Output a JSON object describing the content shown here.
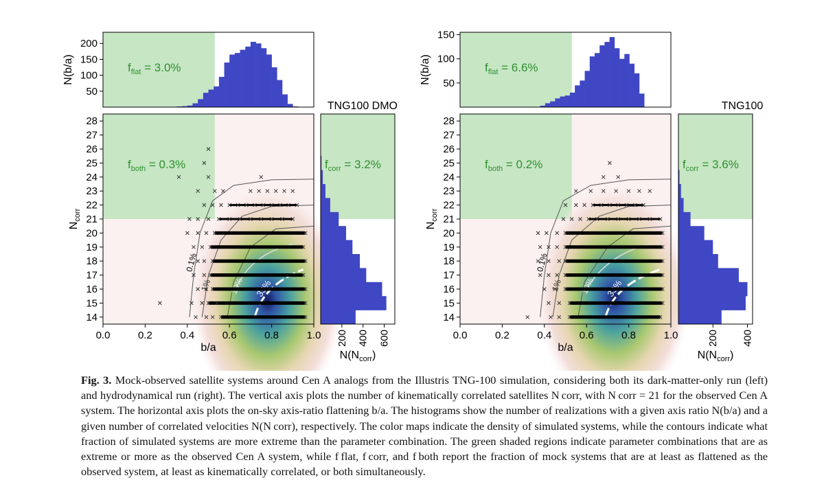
{
  "figure": {
    "caption_label": "Fig. 3.",
    "caption_text": "Mock-observed satellite systems around Cen A analogs from the Illustris TNG-100 simulation, considering both its dark-matter-only run (left) and hydrodynamical run (right). The vertical axis plots the number of kinematically correlated satellites N corr, with N corr = 21 for the observed Cen A system. The horizontal axis plots the on-sky axis-ratio flattening b/a. The histograms show the number of realizations with a given axis ratio N(b/a) and a given number of correlated velocities N(N corr), respectively. The color maps indicate the density of simulated systems, while the contours indicate what fraction of simulated systems are more extreme than the parameter combination. The green shaded regions indicate parameter combinations that are as extreme or more as the observed Cen A system, while f flat, f corr, and f both report the fraction of mock systems that are at least as flattened as the observed system, at least as kinematically correlated, or both simultaneously."
  },
  "colors": {
    "hist": "#3f47c4",
    "shade": "#c6e6c4",
    "annot": "#2f8f2f",
    "contour": "#555555"
  },
  "chart_data": [
    {
      "type": "histogram",
      "panel": "left-top",
      "ylabel": "N(b/a)",
      "yticks": [
        50,
        100,
        150,
        200
      ],
      "ylim": [
        0,
        235
      ],
      "xlim": [
        0,
        1
      ],
      "annotation_pre": "f",
      "annotation_sub": "flat",
      "annotation_post": " = 3.0%",
      "bins_x0": 0.35,
      "bin_width": 0.025,
      "values": [
        2,
        3,
        5,
        12,
        25,
        45,
        55,
        65,
        95,
        140,
        165,
        170,
        180,
        190,
        205,
        200,
        185,
        165,
        125,
        85,
        40,
        10,
        2
      ],
      "shade_xmax": 0.53
    },
    {
      "type": "scatter",
      "panel": "left-main",
      "xlabel": "b/a",
      "ylabel": "N",
      "ylabel_sub": "corr",
      "xlim": [
        0,
        1
      ],
      "ylim": [
        13.5,
        28.5
      ],
      "xticks": [
        "0.0",
        "0.2",
        "0.4",
        "0.6",
        "0.8",
        "1.0"
      ],
      "yticks": [
        14,
        15,
        16,
        17,
        18,
        19,
        20,
        21,
        22,
        23,
        24,
        25,
        26,
        27,
        28
      ],
      "annotation_pre": "f",
      "annotation_sub": "both",
      "annotation_post": " = 0.3%",
      "shade": {
        "xmax": 0.53,
        "ymin": 21
      },
      "density_center": [
        0.78,
        15.2
      ],
      "contour_labels": [
        "0.1%",
        "1%",
        "10%",
        "33%"
      ],
      "rows": [
        {
          "y": 14,
          "x": [
            0.44,
            0.49,
            0.52,
            0.56,
            0.96
          ]
        },
        {
          "y": 15,
          "x": [
            0.27,
            0.42,
            0.47,
            0.5,
            0.54,
            0.96
          ]
        },
        {
          "y": 16,
          "x": [
            0.45,
            0.49,
            0.52,
            0.96
          ]
        },
        {
          "y": 17,
          "x": [
            0.43,
            0.48,
            0.51,
            0.95
          ]
        },
        {
          "y": 18,
          "x": [
            0.45,
            0.48,
            0.52,
            0.96
          ]
        },
        {
          "y": 19,
          "x": [
            0.43,
            0.47,
            0.51,
            0.95
          ]
        },
        {
          "y": 20,
          "x": [
            0.4,
            0.45,
            0.49,
            0.53,
            0.96
          ]
        },
        {
          "y": 21,
          "x": [
            0.41,
            0.45,
            0.5,
            0.55,
            0.6,
            0.65,
            0.7,
            0.75,
            0.8,
            0.85,
            0.9
          ]
        },
        {
          "y": 22,
          "x": [
            0.48,
            0.52,
            0.56,
            0.6,
            0.64,
            0.68,
            0.72,
            0.76,
            0.8,
            0.84,
            0.88,
            0.92
          ]
        },
        {
          "y": 23,
          "x": [
            0.45,
            0.53,
            0.57,
            0.7,
            0.74,
            0.78,
            0.82,
            0.86,
            0.9
          ]
        },
        {
          "y": 24,
          "x": [
            0.36,
            0.5,
            0.75
          ]
        },
        {
          "y": 25,
          "x": [
            0.48
          ]
        },
        {
          "y": 26,
          "x": [
            0.5
          ]
        }
      ]
    },
    {
      "type": "histogram-horizontal",
      "panel": "left-right",
      "title": "TNG100 DMO",
      "xlabel": "N(N",
      "xlabel_sub": "corr",
      "xlabel_post": ")",
      "xticks": [
        200,
        400,
        600
      ],
      "xlim": [
        0,
        700
      ],
      "annotation_pre": "f",
      "annotation_sub": "corr",
      "annotation_post": " = 3.2%",
      "ylim": [
        13.5,
        28.5
      ],
      "shade_ymin": 21,
      "bins": [
        14,
        15,
        16,
        17,
        18,
        19,
        20,
        21,
        22,
        23,
        24,
        25
      ],
      "values": [
        330,
        620,
        580,
        430,
        370,
        300,
        240,
        170,
        90,
        45,
        20,
        8
      ]
    },
    {
      "type": "histogram",
      "panel": "right-top",
      "ylabel": "N(b/a)",
      "yticks": [
        50,
        100,
        150
      ],
      "ylim": [
        0,
        155
      ],
      "xlim": [
        0,
        1
      ],
      "annotation_pre": "f",
      "annotation_sub": "flat",
      "annotation_post": " = 6.6%",
      "bins_x0": 0.38,
      "bin_width": 0.0235,
      "values": [
        3,
        8,
        12,
        18,
        22,
        24,
        30,
        45,
        55,
        75,
        105,
        112,
        128,
        135,
        145,
        122,
        100,
        110,
        90,
        70,
        28
      ],
      "shade_xmax": 0.53
    },
    {
      "type": "scatter",
      "panel": "right-main",
      "xlabel": "b/a",
      "ylabel": "N",
      "ylabel_sub": "corr",
      "xlim": [
        0,
        1
      ],
      "ylim": [
        13.5,
        28.5
      ],
      "xticks": [
        "0.0",
        "0.2",
        "0.4",
        "0.6",
        "0.8",
        "1.0"
      ],
      "yticks": [
        14,
        15,
        16,
        17,
        18,
        19,
        20,
        21,
        22,
        23,
        24,
        25,
        26,
        27,
        28
      ],
      "annotation_pre": "f",
      "annotation_sub": "both",
      "annotation_post": " = 0.2%",
      "shade": {
        "xmax": 0.53,
        "ymin": 21
      },
      "density_center": [
        0.73,
        15.4
      ],
      "contour_labels": [
        "0.1%",
        "1%",
        "10%",
        "33%"
      ],
      "rows": [
        {
          "y": 14,
          "x": [
            0.32,
            0.43,
            0.47,
            0.52,
            0.95
          ]
        },
        {
          "y": 15,
          "x": [
            0.42,
            0.47,
            0.52,
            0.96
          ]
        },
        {
          "y": 16,
          "x": [
            0.4,
            0.45,
            0.5,
            0.96
          ]
        },
        {
          "y": 17,
          "x": [
            0.38,
            0.42,
            0.46,
            0.5,
            0.96
          ]
        },
        {
          "y": 18,
          "x": [
            0.37,
            0.42,
            0.47,
            0.5,
            0.96
          ]
        },
        {
          "y": 19,
          "x": [
            0.38,
            0.42,
            0.46,
            0.5,
            0.96
          ]
        },
        {
          "y": 20,
          "x": [
            0.37,
            0.41,
            0.46,
            0.5,
            0.96
          ]
        },
        {
          "y": 21,
          "x": [
            0.49,
            0.53,
            0.57,
            0.61,
            0.65,
            0.7,
            0.75,
            0.8,
            0.85,
            0.9,
            0.95
          ]
        },
        {
          "y": 22,
          "x": [
            0.5,
            0.55,
            0.59,
            0.63,
            0.67,
            0.71,
            0.75,
            0.79,
            0.83,
            0.87
          ]
        },
        {
          "y": 23,
          "x": [
            0.55,
            0.62,
            0.68,
            0.74,
            0.8,
            0.85,
            0.9
          ]
        },
        {
          "y": 24,
          "x": [
            0.68,
            0.75
          ]
        },
        {
          "y": 25,
          "x": [
            0.71
          ]
        }
      ]
    },
    {
      "type": "histogram-horizontal",
      "panel": "right-right",
      "title": "TNG100",
      "xlabel": "N(N",
      "xlabel_sub": "corr",
      "xlabel_post": ")",
      "xticks": [
        200,
        400
      ],
      "xlim": [
        0,
        430
      ],
      "annotation_pre": "f",
      "annotation_sub": "corr",
      "annotation_post": " = 3.6%",
      "ylim": [
        13.5,
        28.5
      ],
      "shade_ymin": 21,
      "bins": [
        14,
        15,
        16,
        17,
        18,
        19,
        20,
        21,
        22,
        23,
        24
      ],
      "values": [
        250,
        390,
        400,
        350,
        230,
        200,
        150,
        70,
        30,
        15,
        6
      ]
    }
  ]
}
